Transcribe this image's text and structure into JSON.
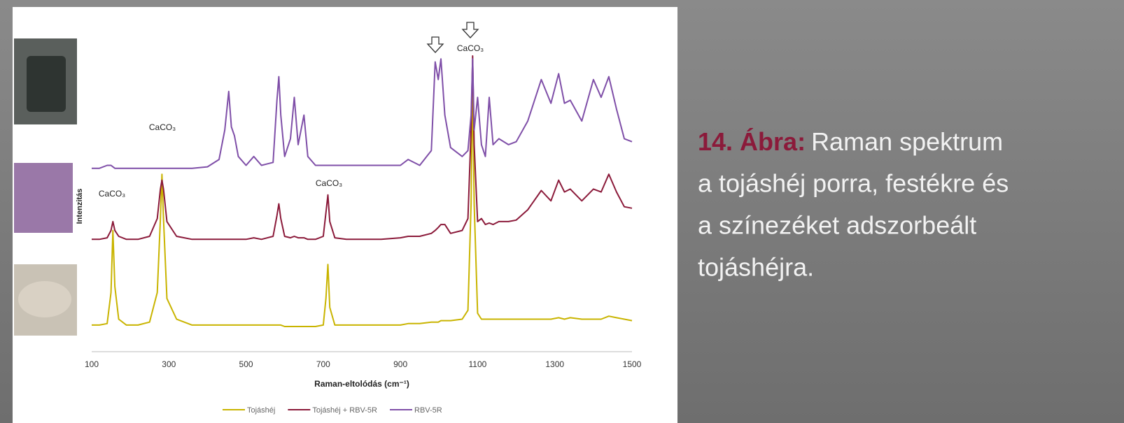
{
  "chart_data": {
    "type": "line",
    "x_label": "Raman-eltolódás (cm⁻¹)",
    "y_label": "Intenzitás",
    "x": [
      100,
      120,
      140,
      150,
      155,
      160,
      170,
      190,
      220,
      250,
      270,
      278,
      282,
      286,
      295,
      320,
      360,
      400,
      430,
      445,
      455,
      462,
      470,
      480,
      500,
      520,
      540,
      570,
      580,
      585,
      590,
      600,
      615,
      625,
      635,
      650,
      660,
      680,
      700,
      707,
      712,
      717,
      730,
      760,
      800,
      850,
      900,
      920,
      950,
      980,
      990,
      998,
      1005,
      1015,
      1030,
      1060,
      1075,
      1083,
      1087,
      1091,
      1100,
      1110,
      1120,
      1130,
      1140,
      1155,
      1180,
      1200,
      1230,
      1265,
      1290,
      1310,
      1325,
      1340,
      1370,
      1400,
      1420,
      1440,
      1460,
      1480,
      1500
    ],
    "series": [
      {
        "name": "Tojáshéj",
        "color": "#c9b400",
        "values": [
          9,
          9,
          9.5,
          20,
          41,
          22,
          11,
          9,
          9,
          10,
          20,
          45,
          60,
          45,
          18,
          11,
          9,
          9,
          9,
          9,
          9,
          9,
          9,
          9,
          9,
          9,
          9,
          9,
          9,
          9,
          9,
          8.5,
          8.5,
          8.5,
          8.5,
          8.5,
          8.5,
          8.5,
          9,
          18,
          29.5,
          15,
          9,
          9,
          9,
          9,
          9,
          9.5,
          9.5,
          10,
          10,
          10,
          10.5,
          10.5,
          10.5,
          11,
          14,
          50,
          93,
          50,
          13,
          11,
          11,
          11,
          11,
          11,
          11,
          11,
          11,
          11,
          11,
          11.5,
          11,
          11.5,
          11,
          11,
          11,
          12,
          11.5,
          11,
          10.5
        ]
      },
      {
        "name": "Tojáshéj + RBV-5R",
        "color": "#8b1a3a",
        "values": [
          38,
          38,
          38.5,
          41,
          44,
          41,
          39,
          38,
          38,
          39,
          45,
          55,
          58,
          55,
          44,
          39,
          38,
          38,
          38,
          38,
          38,
          38,
          38,
          38,
          38,
          38.5,
          38,
          39,
          46,
          50,
          45,
          39,
          38.5,
          39,
          38.5,
          38.5,
          38,
          38,
          39,
          47,
          53,
          44,
          38.5,
          38,
          38,
          38,
          38.5,
          39,
          39,
          40,
          41,
          42,
          43,
          43,
          40,
          41,
          45,
          75,
          100,
          70,
          44,
          45,
          43,
          43.5,
          43,
          44,
          44,
          44.5,
          48,
          54.5,
          51,
          58,
          54,
          55,
          51,
          55,
          54,
          60,
          54,
          49,
          48.5
        ]
      },
      {
        "name": "RBV-5R",
        "color": "#7f4fa8",
        "values": [
          62,
          62,
          63,
          63,
          62.5,
          62,
          62,
          62,
          62,
          62,
          62,
          62,
          62,
          62,
          62,
          62,
          62,
          62.5,
          65,
          75,
          88,
          76,
          73,
          66,
          63,
          66,
          63,
          64,
          85,
          93,
          80,
          66,
          72,
          86,
          70,
          80,
          66,
          63,
          63,
          63,
          63,
          63,
          63,
          63,
          63,
          63,
          63,
          65,
          63,
          68,
          98,
          92,
          99,
          80,
          69,
          66,
          68,
          80,
          99,
          75,
          86,
          70,
          66,
          86,
          70,
          72,
          70,
          71,
          78,
          92,
          84,
          94,
          84,
          85,
          78,
          92,
          86,
          93,
          82,
          72,
          71
        ]
      }
    ],
    "xlim": [
      100,
      1500
    ],
    "xticks": [
      100,
      300,
      500,
      700,
      900,
      1100,
      1300,
      1500
    ],
    "ylim": [
      0,
      100
    ],
    "grid": false,
    "legend": "bottom",
    "annotations": [
      "CaCO₃",
      "CaCO₃",
      "CaCO₃",
      "CaCO₃"
    ]
  },
  "caption": {
    "label": "14. Ábra:",
    "lines": [
      "Raman spektrum",
      "a tojáshéj porra, festékre és",
      "a színezéket adszorbeált",
      "tojáshéjra."
    ]
  }
}
